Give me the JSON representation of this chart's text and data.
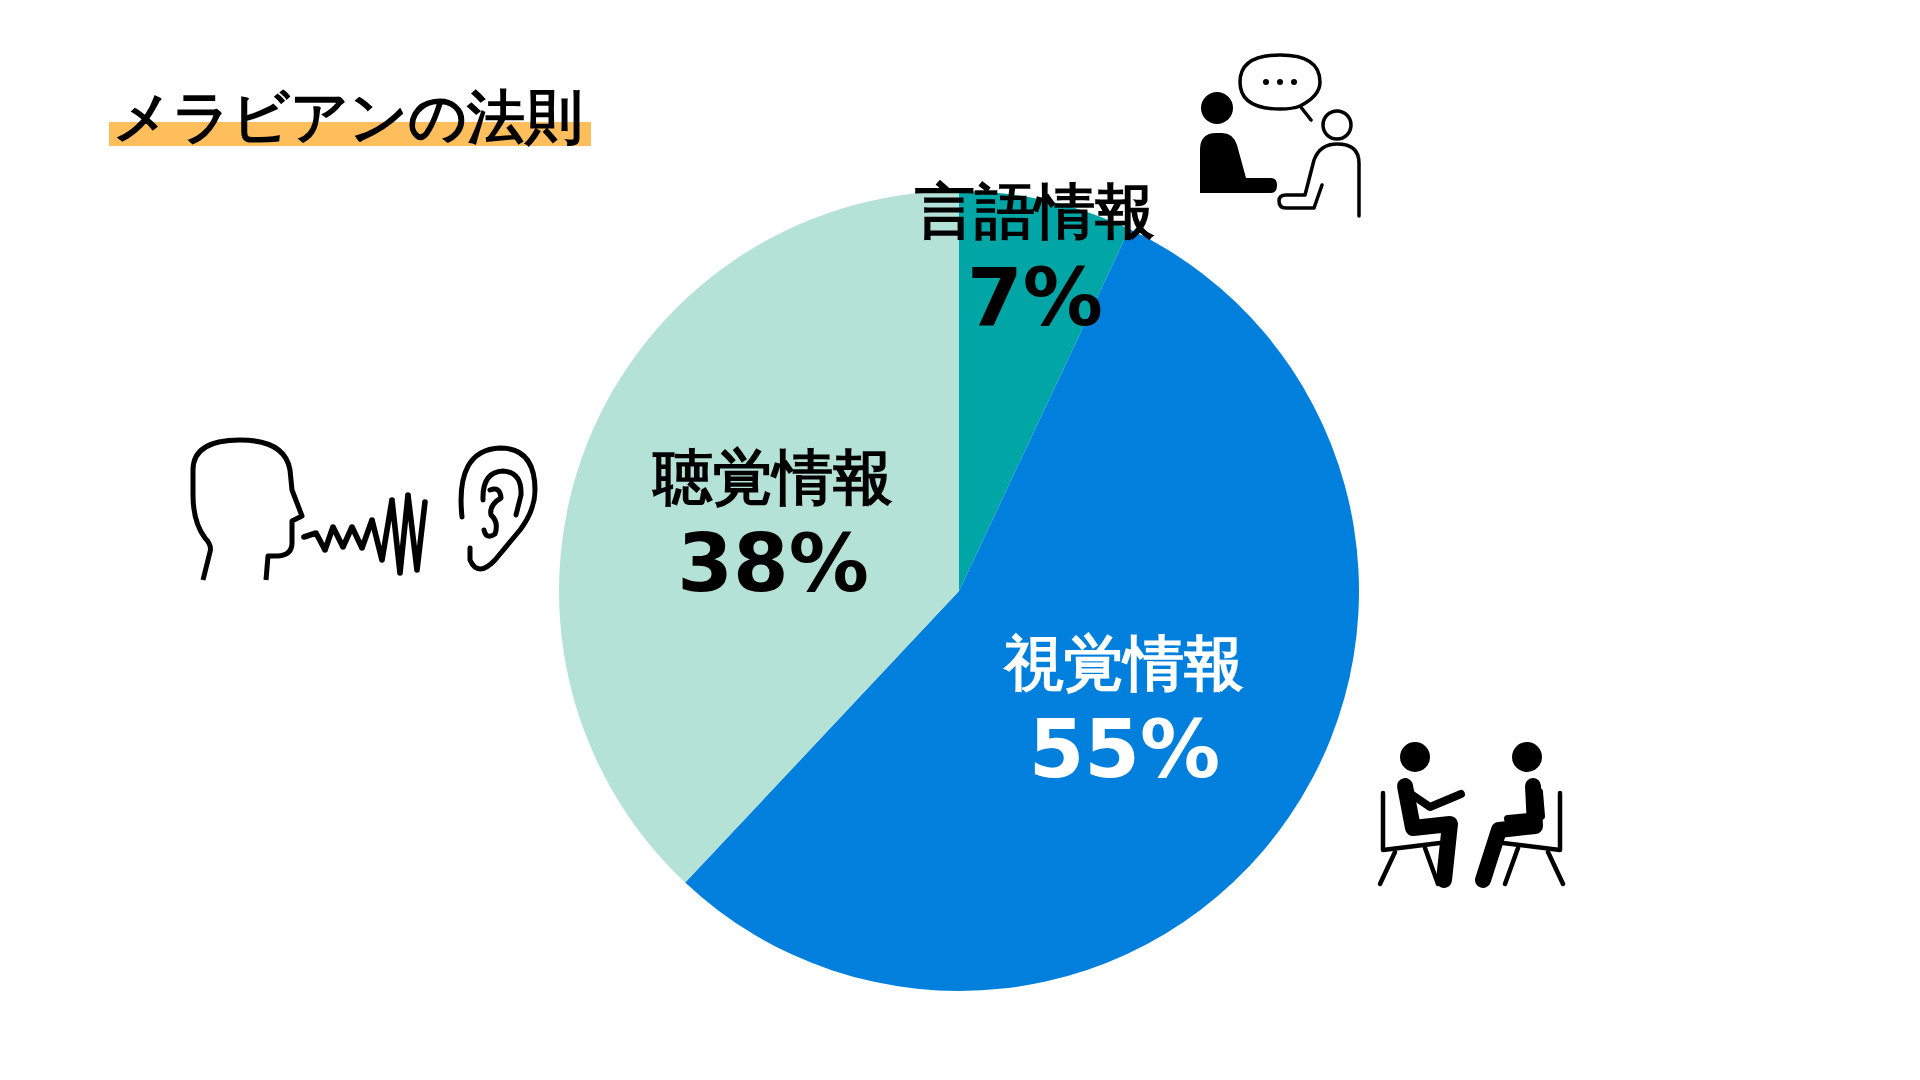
{
  "chart_data": {
    "type": "pie",
    "title": "メラビアンの法則",
    "categories": [
      "言語情報",
      "視覚情報",
      "聴覚情報"
    ],
    "values": [
      7,
      55,
      38
    ],
    "colors": [
      "#00a6a6",
      "#0080dc",
      "#b5e2d6"
    ],
    "value_labels": [
      "7%",
      "55%",
      "38%"
    ]
  }
}
